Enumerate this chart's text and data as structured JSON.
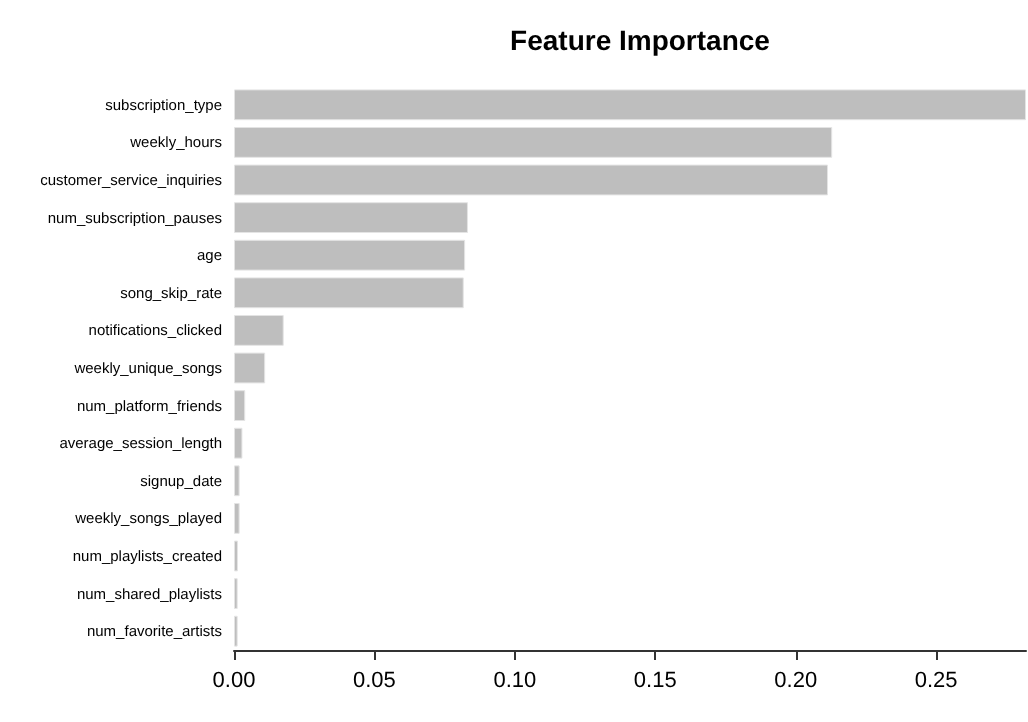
{
  "chart_data": {
    "type": "bar",
    "orientation": "horizontal",
    "title": "Feature Importance",
    "categories": [
      "subscription_type",
      "weekly_hours",
      "customer_service_inquiries",
      "num_subscription_pauses",
      "age",
      "song_skip_rate",
      "notifications_clicked",
      "weekly_unique_songs",
      "num_platform_friends",
      "average_session_length",
      "signup_date",
      "weekly_songs_played",
      "num_playlists_created",
      "num_shared_playlists",
      "num_favorite_artists"
    ],
    "values": [
      0.282,
      0.213,
      0.2115,
      0.0833,
      0.0823,
      0.0818,
      0.0177,
      0.0111,
      0.004,
      0.003,
      0.002,
      0.002,
      0.0014,
      0.0013,
      0.0013
    ],
    "color": "#bebebe",
    "xlim": [
      0,
      0.282
    ],
    "xticks": [
      {
        "value": 0,
        "label": "0.00"
      },
      {
        "value": 0.05,
        "label": "0.05"
      },
      {
        "value": 0.1,
        "label": "0.10"
      },
      {
        "value": 0.15,
        "label": "0.15"
      },
      {
        "value": 0.2,
        "label": "0.20"
      },
      {
        "value": 0.25,
        "label": "0.25"
      }
    ],
    "grid": false
  }
}
